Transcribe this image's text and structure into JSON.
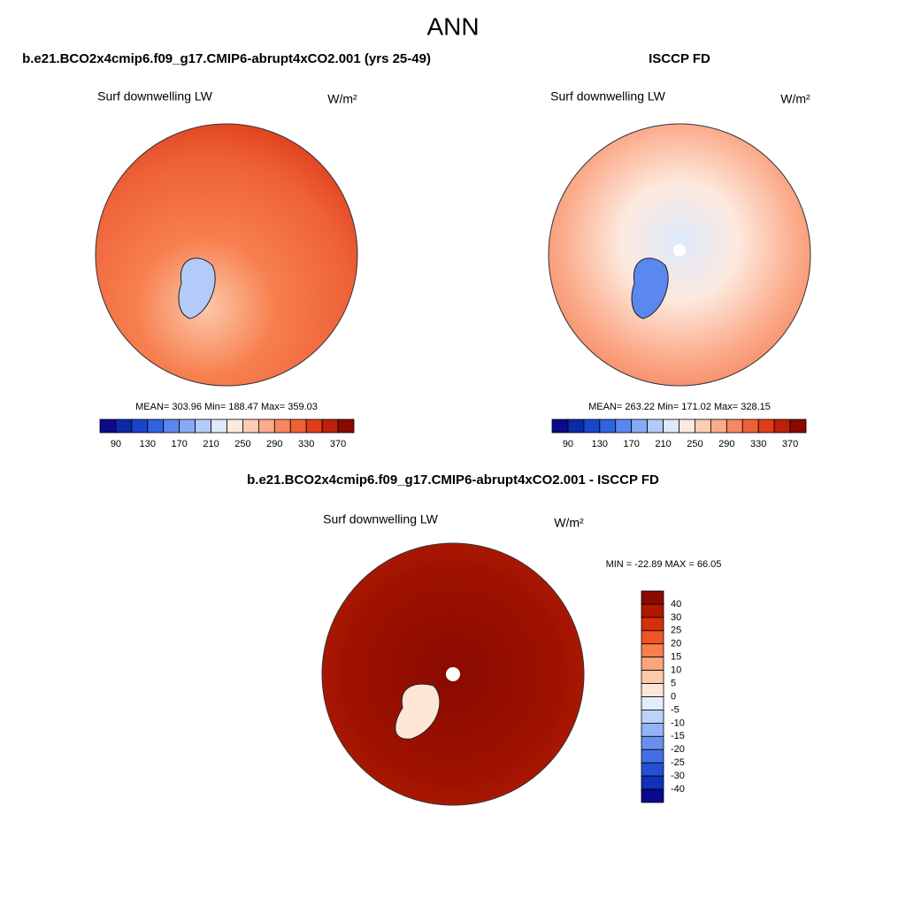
{
  "title": "ANN",
  "panels": [
    {
      "case": "b.e21.BCO2x4cmip6.f09_g17.CMIP6-abrupt4xCO2.001 (yrs 25-49)",
      "variable": "Surf downwelling LW",
      "units": "W/m²",
      "stats": "MEAN= 303.96  Min= 188.47  Max= 359.03",
      "colorbar": {
        "colors": [
          "#0a0a8c",
          "#0c2aa8",
          "#1845cc",
          "#3063e0",
          "#5a88ee",
          "#88aaf4",
          "#b3cbf8",
          "#dde9fb",
          "#fde9de",
          "#fccdb4",
          "#fbab8a",
          "#f68761",
          "#ee6139",
          "#de3e1a",
          "#bd2008",
          "#8a0a00"
        ],
        "labels": [
          "90",
          "130",
          "170",
          "210",
          "250",
          "290",
          "330",
          "370"
        ]
      }
    },
    {
      "case": "ISCCP FD",
      "variable": "Surf downwelling LW",
      "units": "W/m²",
      "stats": "MEAN= 263.22  Min= 171.02  Max= 328.15",
      "colorbar": {
        "colors": [
          "#0a0a8c",
          "#0c2aa8",
          "#1845cc",
          "#3063e0",
          "#5a88ee",
          "#88aaf4",
          "#b3cbf8",
          "#dde9fb",
          "#fde9de",
          "#fccdb4",
          "#fbab8a",
          "#f68761",
          "#ee6139",
          "#de3e1a",
          "#bd2008",
          "#8a0a00"
        ],
        "labels": [
          "90",
          "130",
          "170",
          "210",
          "250",
          "290",
          "330",
          "370"
        ]
      }
    }
  ],
  "difference": {
    "case": "b.e21.BCO2x4cmip6.f09_g17.CMIP6-abrupt4xCO2.001 - ISCCP FD",
    "variable": "Surf downwelling LW",
    "units": "W/m²",
    "stats": "MIN = -22.89 MAX =  66.05",
    "colorbar": {
      "colors": [
        "#8a0a00",
        "#b01800",
        "#d6300a",
        "#f05424",
        "#f7804f",
        "#fba57f",
        "#fcc9ab",
        "#fde6d6",
        "#e4edfb",
        "#bdd2f8",
        "#94b3f4",
        "#6a90ee",
        "#4470e4",
        "#2550d6",
        "#1230b8",
        "#080890"
      ],
      "labels": [
        "40",
        "30",
        "25",
        "20",
        "15",
        "10",
        "5",
        "0",
        "-5",
        "-10",
        "-15",
        "-20",
        "-25",
        "-30",
        "-40"
      ]
    }
  }
}
